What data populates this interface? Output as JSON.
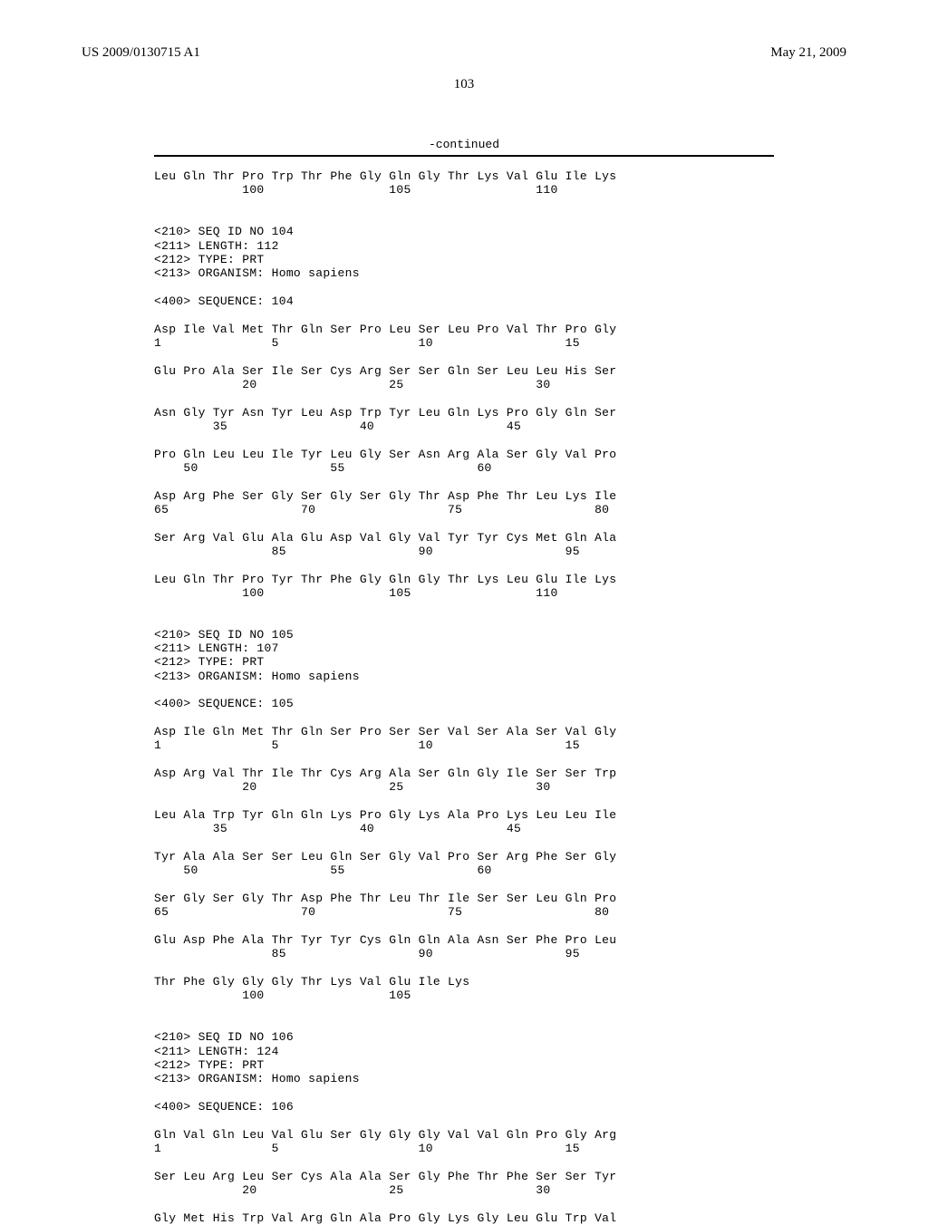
{
  "header": {
    "pub_number": "US 2009/0130715 A1",
    "pub_date": "May 21, 2009"
  },
  "page_number": "103",
  "continued_label": "-continued",
  "blocks": [
    {
      "text": "Leu Gln Thr Pro Trp Thr Phe Gly Gln Gly Thr Lys Val Glu Ile Lys\n            100                 105                 110"
    },
    {
      "text": "\n\n<210> SEQ ID NO 104\n<211> LENGTH: 112\n<212> TYPE: PRT\n<213> ORGANISM: Homo sapiens\n\n<400> SEQUENCE: 104"
    },
    {
      "text": "\nAsp Ile Val Met Thr Gln Ser Pro Leu Ser Leu Pro Val Thr Pro Gly\n1               5                   10                  15"
    },
    {
      "text": "\nGlu Pro Ala Ser Ile Ser Cys Arg Ser Ser Gln Ser Leu Leu His Ser\n            20                  25                  30"
    },
    {
      "text": "\nAsn Gly Tyr Asn Tyr Leu Asp Trp Tyr Leu Gln Lys Pro Gly Gln Ser\n        35                  40                  45"
    },
    {
      "text": "\nPro Gln Leu Leu Ile Tyr Leu Gly Ser Asn Arg Ala Ser Gly Val Pro\n    50                  55                  60"
    },
    {
      "text": "\nAsp Arg Phe Ser Gly Ser Gly Ser Gly Thr Asp Phe Thr Leu Lys Ile\n65                  70                  75                  80"
    },
    {
      "text": "\nSer Arg Val Glu Ala Glu Asp Val Gly Val Tyr Tyr Cys Met Gln Ala\n                85                  90                  95"
    },
    {
      "text": "\nLeu Gln Thr Pro Tyr Thr Phe Gly Gln Gly Thr Lys Leu Glu Ile Lys\n            100                 105                 110"
    },
    {
      "text": "\n\n<210> SEQ ID NO 105\n<211> LENGTH: 107\n<212> TYPE: PRT\n<213> ORGANISM: Homo sapiens\n\n<400> SEQUENCE: 105"
    },
    {
      "text": "\nAsp Ile Gln Met Thr Gln Ser Pro Ser Ser Val Ser Ala Ser Val Gly\n1               5                   10                  15"
    },
    {
      "text": "\nAsp Arg Val Thr Ile Thr Cys Arg Ala Ser Gln Gly Ile Ser Ser Trp\n            20                  25                  30"
    },
    {
      "text": "\nLeu Ala Trp Tyr Gln Gln Lys Pro Gly Lys Ala Pro Lys Leu Leu Ile\n        35                  40                  45"
    },
    {
      "text": "\nTyr Ala Ala Ser Ser Leu Gln Ser Gly Val Pro Ser Arg Phe Ser Gly\n    50                  55                  60"
    },
    {
      "text": "\nSer Gly Ser Gly Thr Asp Phe Thr Leu Thr Ile Ser Ser Leu Gln Pro\n65                  70                  75                  80"
    },
    {
      "text": "\nGlu Asp Phe Ala Thr Tyr Tyr Cys Gln Gln Ala Asn Ser Phe Pro Leu\n                85                  90                  95"
    },
    {
      "text": "\nThr Phe Gly Gly Gly Thr Lys Val Glu Ile Lys\n            100                 105"
    },
    {
      "text": "\n\n<210> SEQ ID NO 106\n<211> LENGTH: 124\n<212> TYPE: PRT\n<213> ORGANISM: Homo sapiens\n\n<400> SEQUENCE: 106"
    },
    {
      "text": "\nGln Val Gln Leu Val Glu Ser Gly Gly Gly Val Val Gln Pro Gly Arg\n1               5                   10                  15"
    },
    {
      "text": "\nSer Leu Arg Leu Ser Cys Ala Ala Ser Gly Phe Thr Phe Ser Ser Tyr\n            20                  25                  30"
    },
    {
      "text": "\nGly Met His Trp Val Arg Gln Ala Pro Gly Lys Gly Leu Glu Trp Val"
    }
  ]
}
